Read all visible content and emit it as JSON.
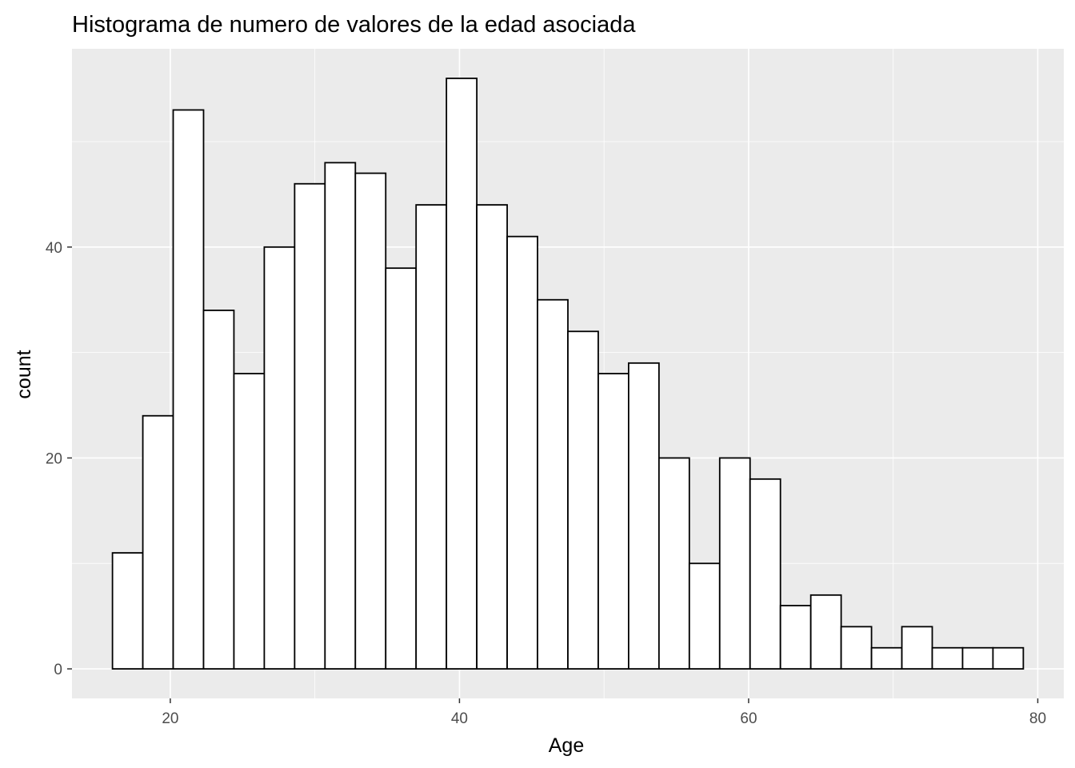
{
  "chart_data": {
    "type": "bar",
    "title": "Histograma de numero de valores de la edad asociada",
    "xlabel": "Age",
    "ylabel": "count",
    "xlim": [
      13.2,
      81.8
    ],
    "ylim": [
      -2.8,
      58.8
    ],
    "xticks": [
      20,
      40,
      60,
      80
    ],
    "yticks": [
      0,
      20,
      40
    ],
    "bin_width": 2.1,
    "bin_start": 16,
    "values": [
      11,
      24,
      53,
      34,
      28,
      40,
      46,
      48,
      47,
      38,
      44,
      56,
      44,
      41,
      35,
      32,
      28,
      29,
      20,
      10,
      20,
      18,
      6,
      7,
      4,
      2,
      4,
      2,
      2,
      2
    ],
    "grid": true,
    "colors": {
      "panel": "#ebebeb",
      "grid": "#ffffff",
      "bar_fill": "#ffffff",
      "bar_stroke": "#000000"
    }
  }
}
